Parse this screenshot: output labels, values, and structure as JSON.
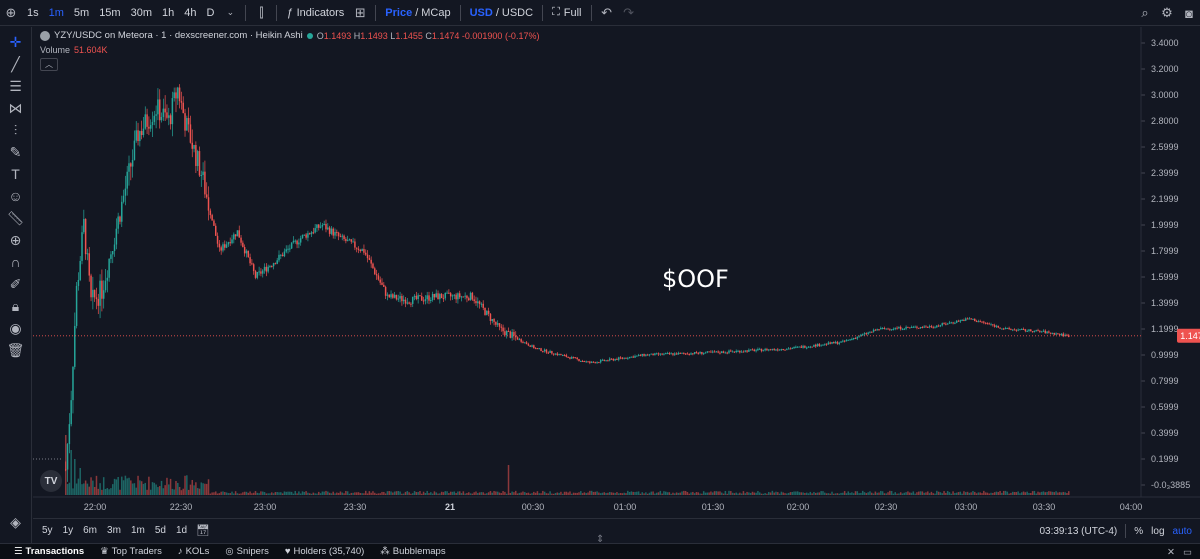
{
  "toolbar": {
    "intervals": [
      "1s",
      "1m",
      "5m",
      "15m",
      "30m",
      "1h",
      "4h",
      "D"
    ],
    "active_interval": "1m",
    "indicators_label": "Indicators",
    "price_label": "Price",
    "slash": "/",
    "mcap_label": "MCap",
    "usd_label": "USD",
    "usdc_label": "USDC",
    "full_label": "Full"
  },
  "legend": {
    "title": "YZY/USDC on Meteora · 1 · dexscreener.com · Heikin Ashi",
    "o_label": "O",
    "o": "1.1493",
    "h_label": "H",
    "h": "1.1493",
    "l_label": "L",
    "l": "1.1455",
    "c_label": "C",
    "c": "1.1474",
    "change": "-0.001900 (-0.17%)",
    "volume_label": "Volume",
    "volume_value": "51.604K"
  },
  "watermark": "$OOF",
  "range_buttons": [
    "5y",
    "1y",
    "6m",
    "3m",
    "1m",
    "5d",
    "1d"
  ],
  "status": {
    "time": "03:39:13 (UTC-4)",
    "percent": "%",
    "log": "log",
    "auto": "auto"
  },
  "bottom_tabs": [
    {
      "label": "Transactions",
      "icon": "list-icon"
    },
    {
      "label": "Top Traders",
      "icon": "trophy-icon"
    },
    {
      "label": "KOLs",
      "icon": "mic-icon"
    },
    {
      "label": "Snipers",
      "icon": "target-icon"
    },
    {
      "label": "Holders (35,740)",
      "icon": "heart-icon"
    },
    {
      "label": "Bubblemaps",
      "icon": "bubbles-icon"
    }
  ],
  "colors": {
    "up": "#26a69a",
    "down": "#ef5350",
    "accent": "#2962ff",
    "bg": "#131722"
  },
  "chart_data": {
    "type": "candlestick",
    "price_axis": [
      "3.4000",
      "3.2000",
      "3.0000",
      "2.8000",
      "2.5999",
      "2.3999",
      "2.1999",
      "1.9999",
      "1.7999",
      "1.5999",
      "1.3999",
      "1.1999",
      "0.9999",
      "0.7999",
      "0.5999",
      "0.3999",
      "0.1999",
      "-0.0₃3885"
    ],
    "time_axis": [
      "22:00",
      "22:30",
      "23:00",
      "23:30",
      "21",
      "00:30",
      "01:00",
      "01:30",
      "02:00",
      "02:30",
      "03:00",
      "03:30",
      "04:00"
    ],
    "last_price": "1.1474",
    "ylim": [
      -0.0004,
      3.4
    ],
    "price_path": [
      {
        "t": 0,
        "p": 0.12
      },
      {
        "t": 3,
        "p": 0.7
      },
      {
        "t": 6,
        "p": 1.5
      },
      {
        "t": 10,
        "p": 2.0
      },
      {
        "t": 14,
        "p": 1.4
      },
      {
        "t": 20,
        "p": 1.5
      },
      {
        "t": 30,
        "p": 2.1
      },
      {
        "t": 40,
        "p": 2.7
      },
      {
        "t": 50,
        "p": 2.9
      },
      {
        "t": 57,
        "p": 2.8
      },
      {
        "t": 62,
        "p": 3.05
      },
      {
        "t": 66,
        "p": 2.8
      },
      {
        "t": 75,
        "p": 2.4
      },
      {
        "t": 85,
        "p": 1.8
      },
      {
        "t": 95,
        "p": 1.95
      },
      {
        "t": 105,
        "p": 1.6
      },
      {
        "t": 118,
        "p": 1.75
      },
      {
        "t": 130,
        "p": 1.9
      },
      {
        "t": 142,
        "p": 2.0
      },
      {
        "t": 152,
        "p": 1.9
      },
      {
        "t": 165,
        "p": 1.8
      },
      {
        "t": 178,
        "p": 1.45
      },
      {
        "t": 190,
        "p": 1.42
      },
      {
        "t": 205,
        "p": 1.45
      },
      {
        "t": 225,
        "p": 1.45
      },
      {
        "t": 240,
        "p": 1.2
      },
      {
        "t": 260,
        "p": 1.05
      },
      {
        "t": 290,
        "p": 0.94
      },
      {
        "t": 320,
        "p": 1.0
      },
      {
        "t": 360,
        "p": 1.02
      },
      {
        "t": 400,
        "p": 1.05
      },
      {
        "t": 430,
        "p": 1.1
      },
      {
        "t": 450,
        "p": 1.2
      },
      {
        "t": 480,
        "p": 1.22
      },
      {
        "t": 500,
        "p": 1.28
      },
      {
        "t": 520,
        "p": 1.2
      },
      {
        "t": 540,
        "p": 1.18
      },
      {
        "t": 555,
        "p": 1.147
      }
    ],
    "volume_spikes": [
      {
        "t": 0,
        "v": 1.0
      },
      {
        "t": 3,
        "v": 0.75
      },
      {
        "t": 5,
        "v": 0.6
      },
      {
        "t": 8,
        "v": 0.45
      },
      {
        "t": 245,
        "v": 0.5
      }
    ]
  }
}
